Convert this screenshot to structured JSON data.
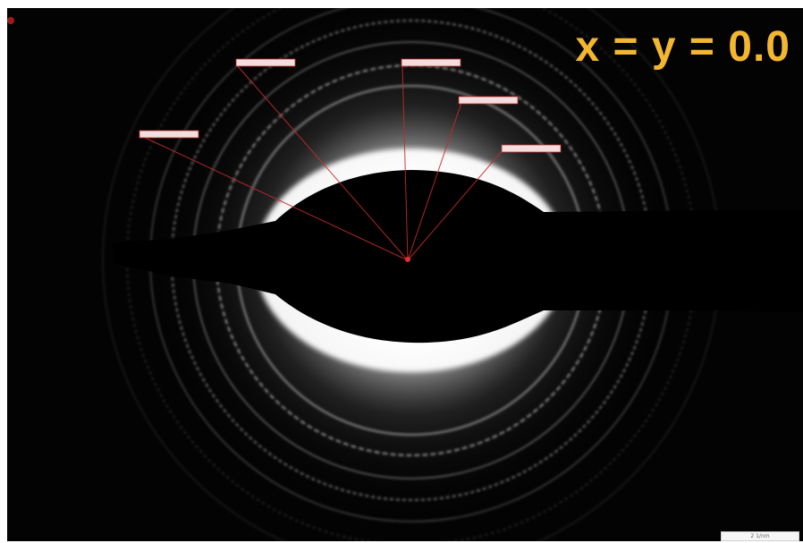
{
  "figure": {
    "composition_label": "x = y = 0.0",
    "label_color": "#f2b631",
    "background_color": "#030303",
    "ring_color": "#ffffff",
    "marker_color": "#c42b2b",
    "ring_label_count": 5,
    "scale_bar_text": "2 1/nm"
  }
}
